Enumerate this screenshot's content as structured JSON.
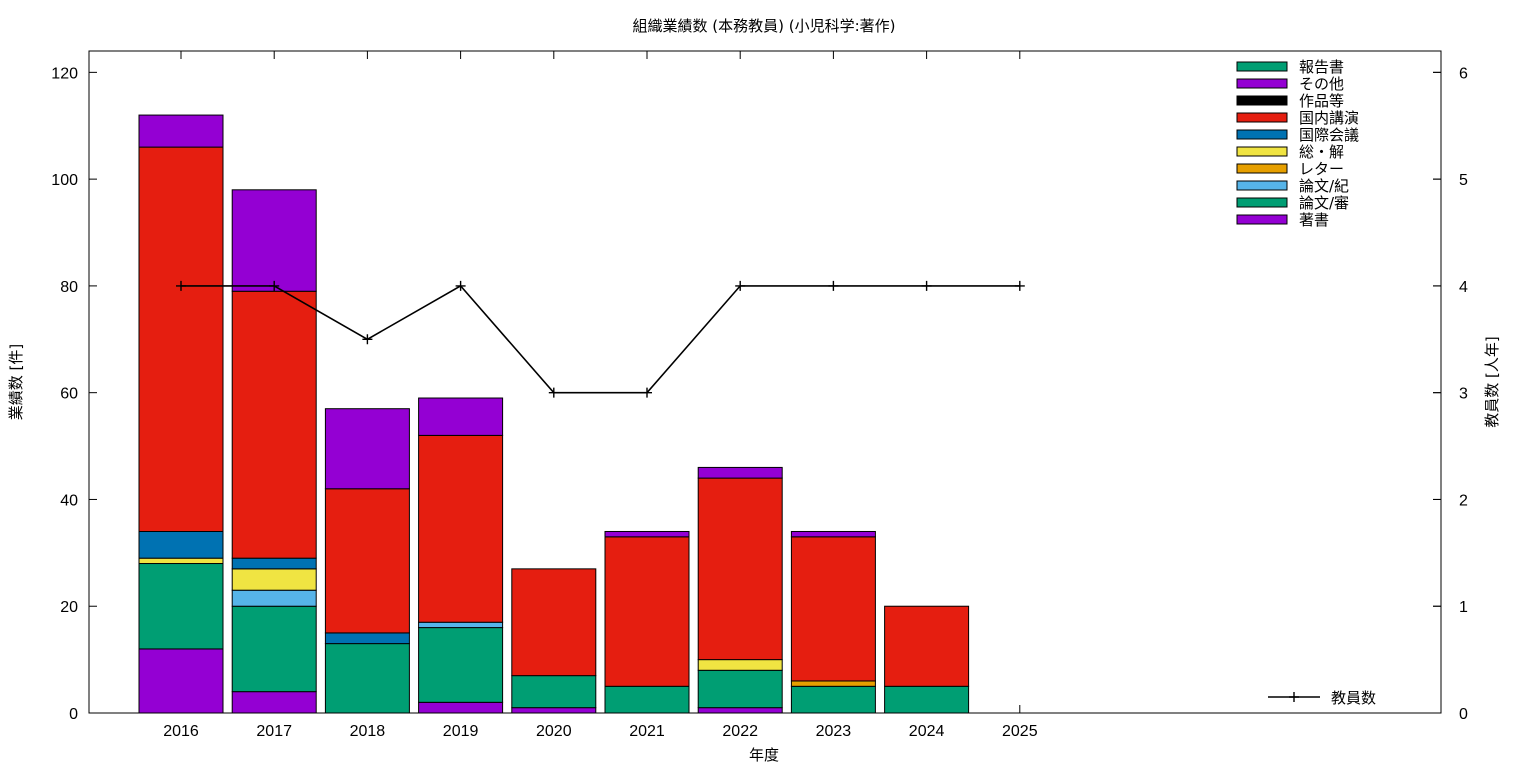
{
  "chart_data": {
    "type": "bar",
    "title": "組織業績数 (本務教員) (小児科学:著作)",
    "xlabel": "年度",
    "ylabel": "業績数 [件]",
    "y2label": "教員数 [人年]",
    "categories": [
      "2016",
      "2017",
      "2018",
      "2019",
      "2020",
      "2021",
      "2022",
      "2023",
      "2024",
      "2025"
    ],
    "ylim": [
      0,
      124
    ],
    "y2lim": [
      0,
      6.2
    ],
    "yticks": [
      "0",
      "20",
      "40",
      "60",
      "80",
      "100",
      "120"
    ],
    "y2ticks": [
      "0",
      "1",
      "2",
      "3",
      "4",
      "5",
      "6"
    ],
    "legend_position": "top-right",
    "stack_order_bottom_to_top": [
      "著書",
      "論文/審",
      "論文/紀",
      "レター",
      "総・解",
      "国際会議",
      "国内講演",
      "作品等",
      "その他",
      "報告書"
    ],
    "series": [
      {
        "name": "報告書",
        "color": "#009e73",
        "values": [
          0,
          0,
          0,
          0,
          0,
          0,
          0,
          0,
          0,
          0
        ]
      },
      {
        "name": "その他",
        "color": "#9400d3",
        "values": [
          6,
          19,
          15,
          7,
          0,
          1,
          2,
          1,
          0,
          0
        ]
      },
      {
        "name": "作品等",
        "color": "#000000",
        "values": [
          0,
          0,
          0,
          0,
          0,
          0,
          0,
          0,
          0,
          0
        ]
      },
      {
        "name": "国内講演",
        "color": "#e51e10",
        "values": [
          72,
          50,
          27,
          35,
          20,
          28,
          34,
          27,
          15,
          0
        ]
      },
      {
        "name": "国際会議",
        "color": "#0072b2",
        "values": [
          5,
          2,
          2,
          0,
          0,
          0,
          0,
          0,
          0,
          0
        ]
      },
      {
        "name": "総・解",
        "color": "#f0e442",
        "values": [
          1,
          4,
          0,
          0,
          0,
          0,
          2,
          0,
          0,
          0
        ]
      },
      {
        "name": "レター",
        "color": "#e69f00",
        "values": [
          0,
          0,
          0,
          0,
          0,
          0,
          0,
          1,
          0,
          0
        ]
      },
      {
        "name": "論文/紀",
        "color": "#56b4e9",
        "values": [
          0,
          3,
          0,
          1,
          0,
          0,
          0,
          0,
          0,
          0
        ]
      },
      {
        "name": "論文/審",
        "color": "#009e73",
        "values": [
          16,
          16,
          13,
          14,
          6,
          5,
          7,
          5,
          5,
          0
        ]
      },
      {
        "name": "著書",
        "color": "#9400d3",
        "values": [
          12,
          4,
          0,
          2,
          1,
          0,
          1,
          0,
          0,
          0
        ]
      }
    ],
    "line_series": {
      "name": "教員数",
      "axis": "right",
      "color": "#000000",
      "values": [
        4,
        4,
        3.5,
        4,
        3,
        3,
        4,
        4,
        4,
        4
      ]
    }
  }
}
